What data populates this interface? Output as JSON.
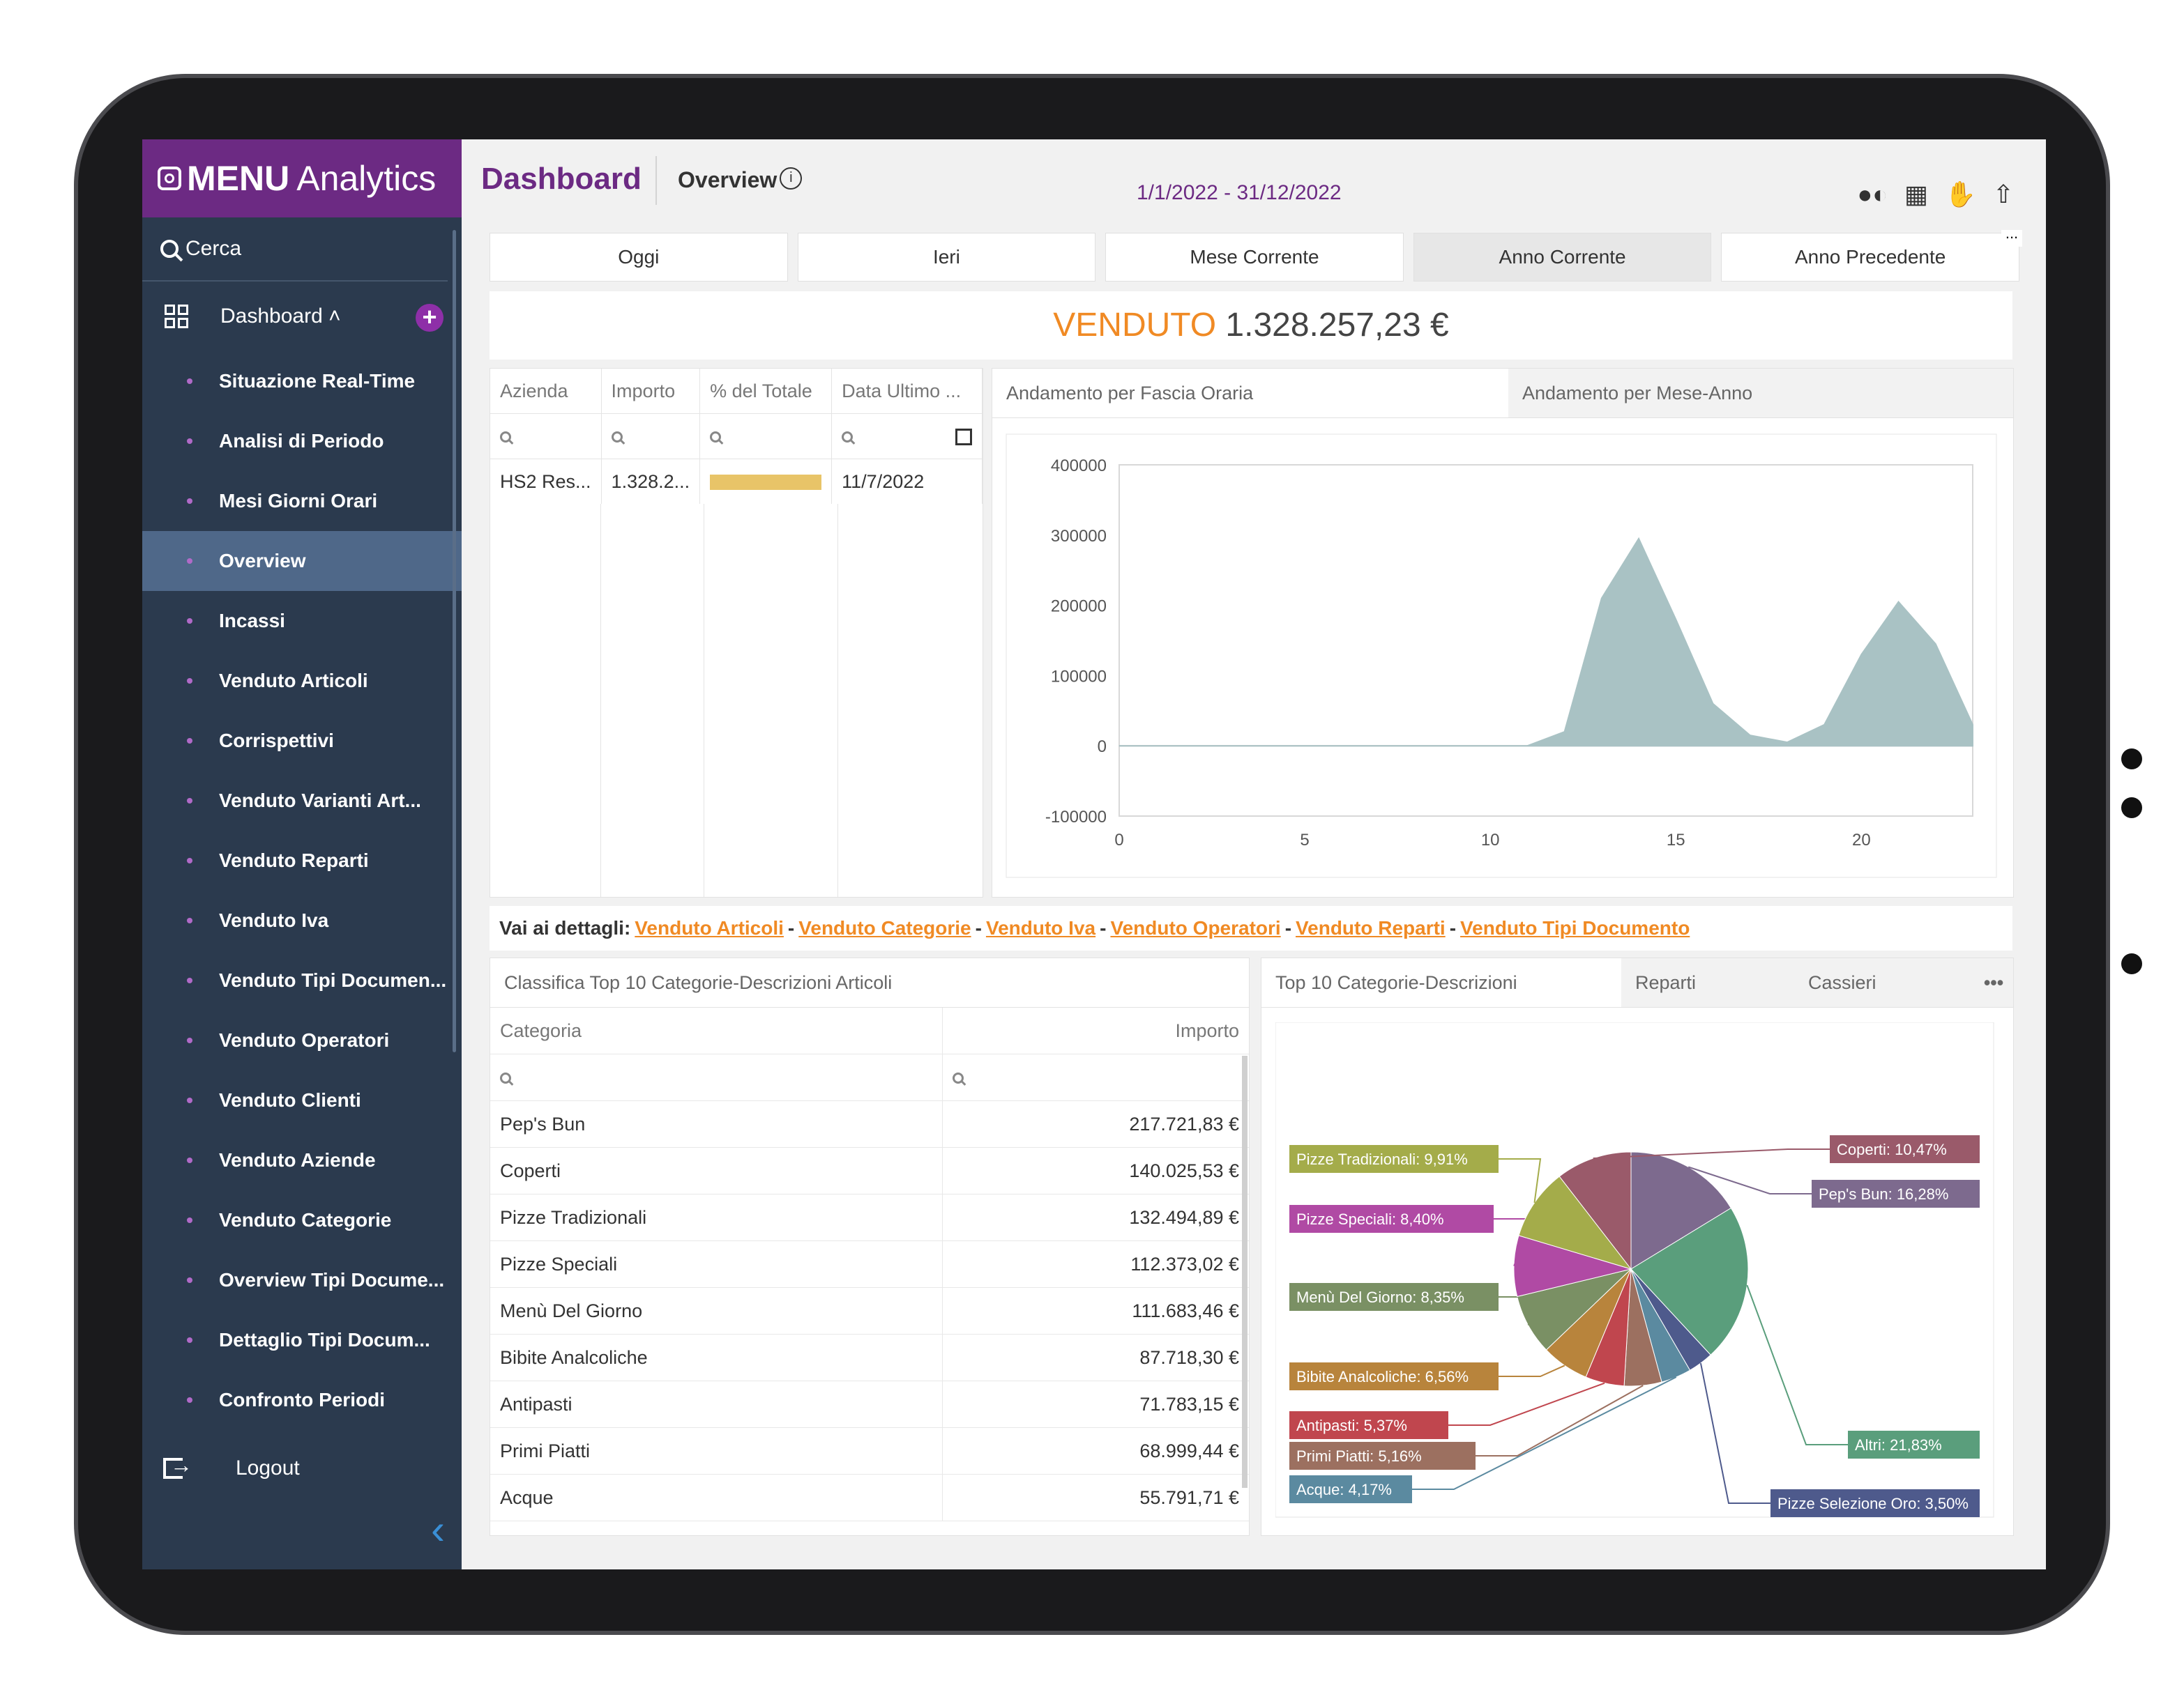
{
  "brand": {
    "name_bold": "MENU",
    "name_rest": "Analytics"
  },
  "sidebar": {
    "search_label": "Cerca",
    "dashboard_label": "Dashboard ˄",
    "items": [
      {
        "label": "Situazione Real-Time"
      },
      {
        "label": "Analisi di Periodo"
      },
      {
        "label": "Mesi Giorni Orari"
      },
      {
        "label": "Overview",
        "active": true
      },
      {
        "label": "Incassi"
      },
      {
        "label": "Venduto Articoli"
      },
      {
        "label": "Corrispettivi"
      },
      {
        "label": "Venduto Varianti Art..."
      },
      {
        "label": "Venduto Reparti"
      },
      {
        "label": "Venduto Iva"
      },
      {
        "label": "Venduto Tipi Documen..."
      },
      {
        "label": "Venduto Operatori"
      },
      {
        "label": "Venduto Clienti"
      },
      {
        "label": "Venduto Aziende"
      },
      {
        "label": "Venduto Categorie"
      },
      {
        "label": "Overview Tipi Docume..."
      },
      {
        "label": "Dettaglio Tipi Docum..."
      },
      {
        "label": "Confronto Periodi"
      }
    ],
    "logout_label": "Logout"
  },
  "header": {
    "title": "Dashboard",
    "subtitle": "Overview",
    "date_range": "1/1/2022 - 31/12/2022"
  },
  "periods": [
    {
      "label": "Oggi"
    },
    {
      "label": "Ieri"
    },
    {
      "label": "Mese Corrente"
    },
    {
      "label": "Anno Corrente",
      "selected": true
    },
    {
      "label": "Anno Precedente"
    }
  ],
  "venduto": {
    "label": "VENDUTO",
    "value": "1.328.257,23 €"
  },
  "aziende_table": {
    "headers": [
      "Azienda",
      "Importo",
      "% del Totale",
      "Data Ultimo ..."
    ],
    "rows": [
      {
        "azienda": "HS2 Res...",
        "importo": "1.328.2...",
        "pct": 1.0,
        "data": "11/7/2022"
      }
    ]
  },
  "chart_tabs": [
    "Andamento per Fascia Oraria",
    "Andamento per Mese-Anno"
  ],
  "chart_data": {
    "type": "area",
    "x": [
      0,
      1,
      2,
      3,
      4,
      5,
      6,
      7,
      8,
      9,
      10,
      11,
      12,
      13,
      14,
      15,
      16,
      17,
      18,
      19,
      20,
      21,
      22,
      23
    ],
    "values": [
      0,
      0,
      0,
      0,
      0,
      0,
      0,
      0,
      0,
      0,
      0,
      0,
      20000,
      210000,
      295000,
      180000,
      60000,
      15000,
      5000,
      30000,
      130000,
      205000,
      145000,
      30000
    ],
    "ylim": [
      -100000,
      400000
    ],
    "yticks": [
      "400000",
      "300000",
      "200000",
      "100000",
      "0",
      "-100000"
    ],
    "xticks": [
      "0",
      "5",
      "10",
      "15",
      "20"
    ],
    "color": "#a9c2c4"
  },
  "links": {
    "prefix": "Vai ai dettagli:",
    "items": [
      "Venduto Articoli",
      "Venduto Categorie",
      "Venduto Iva",
      "Venduto Operatori",
      "Venduto Reparti",
      "Venduto Tipi Documento"
    ]
  },
  "categorie": {
    "title": "Classifica Top 10 Categorie-Descrizioni Articoli",
    "headers": [
      "Categoria",
      "Importo"
    ],
    "rows": [
      {
        "cat": "Pep's Bun",
        "imp": "217.721,83 €"
      },
      {
        "cat": "Coperti",
        "imp": "140.025,53 €"
      },
      {
        "cat": "Pizze Tradizionali",
        "imp": "132.494,89 €"
      },
      {
        "cat": "Pizze Speciali",
        "imp": "112.373,02 €"
      },
      {
        "cat": "Menù Del Giorno",
        "imp": "111.683,46 €"
      },
      {
        "cat": "Bibite Analcoliche",
        "imp": "87.718,30 €"
      },
      {
        "cat": "Antipasti",
        "imp": "71.783,15 €"
      },
      {
        "cat": "Primi Piatti",
        "imp": "68.999,44 €"
      },
      {
        "cat": "Acque",
        "imp": "55.791,71 €"
      }
    ]
  },
  "pie_tabs": [
    "Top 10 Categorie-Descrizioni",
    "Reparti",
    "Cassieri"
  ],
  "pie_data": {
    "type": "pie",
    "slices": [
      {
        "label": "Pep's Bun: 16,28%",
        "value": 16.28,
        "color": "#7d6a8e"
      },
      {
        "label": "Altri: 21,83%",
        "value": 21.83,
        "color": "#5a9e7c"
      },
      {
        "label": "Pizze Selezione Oro: 3,50%",
        "value": 3.5,
        "color": "#4e5a8c"
      },
      {
        "label": "Acque: 4,17%",
        "value": 4.17,
        "color": "#5b8aa0"
      },
      {
        "label": "Primi Piatti: 5,16%",
        "value": 5.16,
        "color": "#9c7060"
      },
      {
        "label": "Antipasti: 5,37%",
        "value": 5.37,
        "color": "#c0464e"
      },
      {
        "label": "Bibite Analcoliche: 6,56%",
        "value": 6.56,
        "color": "#b8843c"
      },
      {
        "label": "Menù Del Giorno: 8,35%",
        "value": 8.35,
        "color": "#7a9064"
      },
      {
        "label": "Pizze Speciali: 8,40%",
        "value": 8.4,
        "color": "#b04aa4"
      },
      {
        "label": "Pizze Tradizionali: 9,91%",
        "value": 9.91,
        "color": "#a4ac4a"
      },
      {
        "label": "Coperti: 10,47%",
        "value": 10.47,
        "color": "#9a5a6a"
      }
    ]
  }
}
